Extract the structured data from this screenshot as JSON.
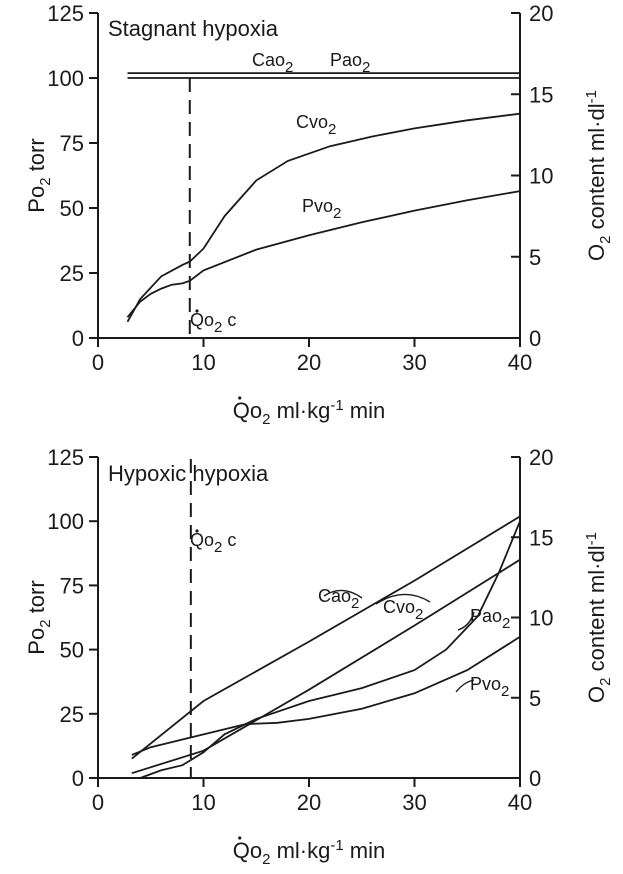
{
  "chart_data": [
    {
      "type": "line",
      "title": "Stagnant hypoxia",
      "xlabel": "Qo2 ml·kg-1 min",
      "ylabel": "Po2 torr",
      "y2label": "O2 content ml·dl-1",
      "xlim": [
        0,
        40
      ],
      "ylim": [
        0,
        125
      ],
      "y2lim": [
        0,
        20
      ],
      "xticks": [
        "0",
        "10",
        "20",
        "30",
        "40"
      ],
      "yticks": [
        "0",
        "25",
        "50",
        "75",
        "100",
        "125"
      ],
      "y2ticks": [
        "0",
        "5",
        "10",
        "15",
        "20"
      ],
      "critical_marker": {
        "label": "Qo2 c",
        "x": 8.7
      },
      "series": [
        {
          "name": "Cao2",
          "axis": "right",
          "x": [
            2.8,
            40
          ],
          "y": [
            16.3,
            16.3
          ]
        },
        {
          "name": "Pao2",
          "axis": "left",
          "x": [
            2.8,
            40
          ],
          "y": [
            100,
            100
          ]
        },
        {
          "name": "Cvo2",
          "axis": "right",
          "x": [
            2.8,
            4,
            6,
            8,
            8.7,
            10,
            12,
            15,
            18,
            22,
            26,
            30,
            35,
            40
          ],
          "y": [
            1.0,
            2.4,
            3.8,
            4.5,
            4.7,
            5.5,
            7.5,
            9.7,
            10.9,
            11.8,
            12.4,
            12.9,
            13.4,
            13.8
          ]
        },
        {
          "name": "Pvo2",
          "axis": "left",
          "x": [
            2.8,
            4,
            5,
            6,
            7,
            8,
            8.7,
            10,
            15,
            20,
            25,
            30,
            35,
            40
          ],
          "y": [
            8,
            14,
            17,
            19,
            20.5,
            21,
            22,
            26,
            34,
            39.5,
            44.5,
            49,
            53,
            56.5
          ]
        }
      ]
    },
    {
      "type": "line",
      "title": "Hypoxic hypoxia",
      "xlabel": "Qo2 ml·kg-1 min",
      "ylabel": "Po2 torr",
      "y2label": "O2 content ml·dl-1",
      "xlim": [
        0,
        40
      ],
      "ylim": [
        0,
        125
      ],
      "y2lim": [
        0,
        20
      ],
      "xticks": [
        "0",
        "10",
        "20",
        "30",
        "40"
      ],
      "yticks": [
        "0",
        "25",
        "50",
        "75",
        "100",
        "125"
      ],
      "y2ticks": [
        "0",
        "5",
        "10",
        "15",
        "20"
      ],
      "critical_marker": {
        "label": "Qo2 c",
        "x": 8.8
      },
      "series": [
        {
          "name": "Cao2",
          "axis": "right",
          "x": [
            3.2,
            10,
            20,
            30,
            40
          ],
          "y": [
            1.2,
            4.8,
            8.5,
            12.3,
            16.3
          ]
        },
        {
          "name": "Cvo2",
          "axis": "right",
          "x": [
            3.2,
            10,
            20,
            30,
            40
          ],
          "y": [
            0.3,
            1.7,
            5.5,
            9.5,
            13.6
          ]
        },
        {
          "name": "Pao2",
          "axis": "left",
          "x": [
            4,
            6,
            8,
            10,
            12,
            15,
            20,
            25,
            30,
            33,
            36,
            38,
            40
          ],
          "y": [
            0,
            3,
            5,
            10,
            17,
            23,
            30,
            35,
            42,
            50,
            63,
            80,
            100
          ]
        },
        {
          "name": "Pvo2",
          "axis": "left",
          "x": [
            3.2,
            5,
            8,
            12,
            14,
            17,
            20,
            25,
            30,
            35,
            40
          ],
          "y": [
            9,
            12,
            15,
            19,
            21,
            21.5,
            23,
            27,
            33,
            42,
            55
          ]
        }
      ]
    }
  ]
}
